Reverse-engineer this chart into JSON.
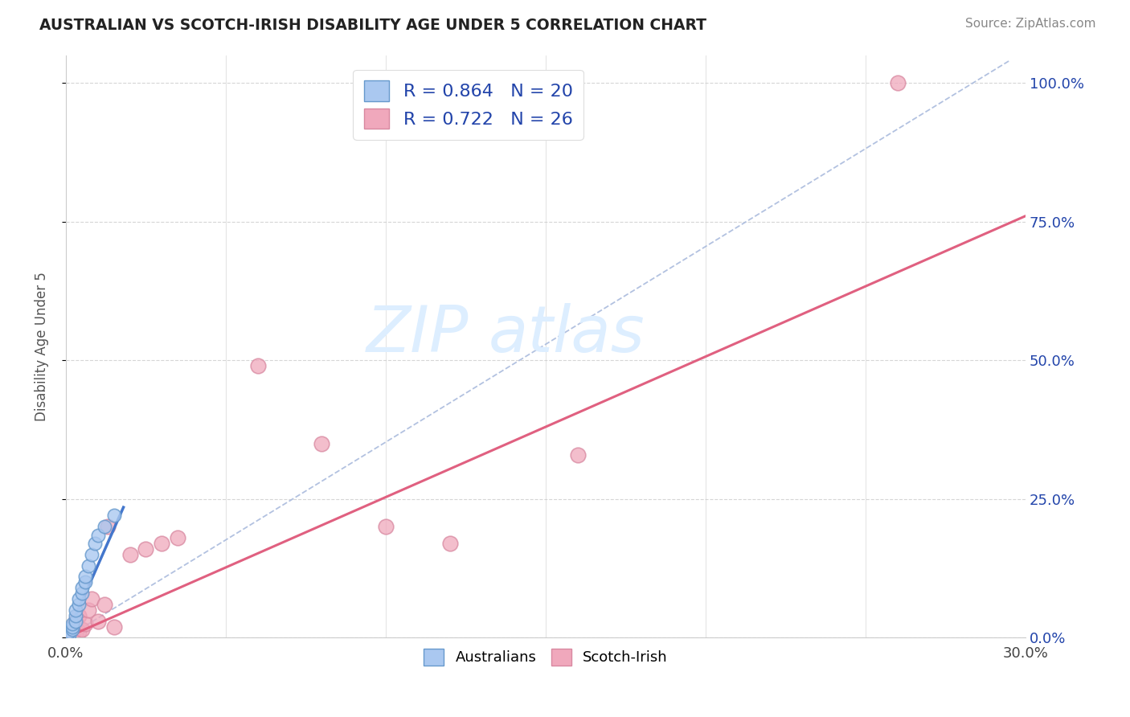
{
  "title": "AUSTRALIAN VS SCOTCH-IRISH DISABILITY AGE UNDER 5 CORRELATION CHART",
  "source": "Source: ZipAtlas.com",
  "ylabel": "Disability Age Under 5",
  "xlim": [
    0.0,
    0.3
  ],
  "ylim": [
    0.0,
    1.05
  ],
  "xtick_positions": [
    0.0,
    0.05,
    0.1,
    0.15,
    0.2,
    0.25,
    0.3
  ],
  "ytick_positions": [
    0.0,
    0.25,
    0.5,
    0.75,
    1.0
  ],
  "ytick_labels_right": [
    "0.0%",
    "25.0%",
    "50.0%",
    "75.0%",
    "100.0%"
  ],
  "australian_R": 0.864,
  "australian_N": 20,
  "scotch_irish_R": 0.722,
  "scotch_irish_N": 26,
  "australian_color": "#aac8f0",
  "scotch_irish_color": "#f0a8bc",
  "australian_line_color": "#4477cc",
  "scotch_irish_line_color": "#e06080",
  "ref_line_color": "#aabbdd",
  "legend_text_color": "#2244aa",
  "title_color": "#222222",
  "background_color": "#ffffff",
  "watermark_color": "#ddeeff",
  "aus_x": [
    0.001,
    0.001,
    0.002,
    0.002,
    0.002,
    0.003,
    0.003,
    0.003,
    0.004,
    0.004,
    0.005,
    0.005,
    0.006,
    0.006,
    0.007,
    0.008,
    0.009,
    0.01,
    0.012,
    0.015
  ],
  "aus_y": [
    0.005,
    0.01,
    0.015,
    0.02,
    0.025,
    0.03,
    0.04,
    0.05,
    0.06,
    0.07,
    0.08,
    0.09,
    0.1,
    0.11,
    0.13,
    0.15,
    0.17,
    0.185,
    0.2,
    0.22
  ],
  "si_x": [
    0.001,
    0.001,
    0.002,
    0.002,
    0.003,
    0.003,
    0.004,
    0.004,
    0.005,
    0.006,
    0.007,
    0.008,
    0.01,
    0.012,
    0.013,
    0.015,
    0.02,
    0.025,
    0.03,
    0.035,
    0.06,
    0.08,
    0.1,
    0.12,
    0.16,
    0.26
  ],
  "si_y": [
    0.003,
    0.01,
    0.005,
    0.02,
    0.008,
    0.03,
    0.01,
    0.04,
    0.015,
    0.025,
    0.05,
    0.07,
    0.03,
    0.06,
    0.2,
    0.02,
    0.15,
    0.16,
    0.17,
    0.18,
    0.49,
    0.35,
    0.2,
    0.17,
    0.33,
    1.0
  ],
  "aus_line_x": [
    0.0,
    0.018
  ],
  "aus_line_y": [
    0.0,
    0.235
  ],
  "si_line_x": [
    0.0,
    0.3
  ],
  "si_line_y": [
    0.0,
    0.76
  ],
  "ref_line_x": [
    0.0,
    0.295
  ],
  "ref_line_y": [
    0.0,
    1.04
  ]
}
